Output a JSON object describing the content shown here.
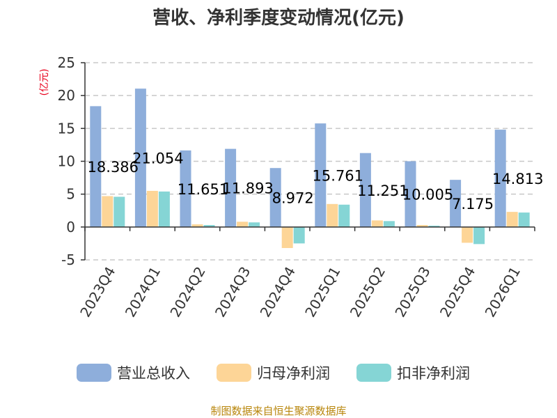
{
  "chart_data": {
    "type": "bar",
    "title": "营收、净利季度变动情况(亿元)",
    "ylabel": "(亿元)",
    "ylim": [
      -5,
      25
    ],
    "yticks": [
      -5,
      0,
      5,
      10,
      15,
      20,
      25
    ],
    "grid": true,
    "legend_position": "bottom",
    "categories": [
      "2023Q4",
      "2024Q1",
      "2024Q2",
      "2024Q3",
      "2024Q4",
      "2025Q1",
      "2025Q2",
      "2025Q3",
      "2025Q4",
      "2026Q1"
    ],
    "series": [
      {
        "name": "营业总收入",
        "color": "#8eaedb",
        "values": [
          18.386,
          21.054,
          11.651,
          11.893,
          8.972,
          15.761,
          11.251,
          10.005,
          7.175,
          14.813
        ]
      },
      {
        "name": "归母净利润",
        "color": "#fdd597",
        "values": [
          4.7,
          5.5,
          0.4,
          0.8,
          -3.2,
          3.5,
          1.0,
          0.3,
          -2.4,
          2.3
        ]
      },
      {
        "name": "扣非净利润",
        "color": "#85d5d5",
        "values": [
          4.6,
          5.4,
          0.3,
          0.7,
          -2.5,
          3.4,
          0.9,
          0.2,
          -2.6,
          2.2
        ]
      }
    ],
    "data_labels": [
      "18.386",
      "21.054",
      "11.651",
      "11.893",
      "8.972",
      "15.761",
      "11.251",
      "10.005",
      "7.175",
      "14.813"
    ]
  },
  "source_text": "制图数据来自恒生聚源数据库"
}
